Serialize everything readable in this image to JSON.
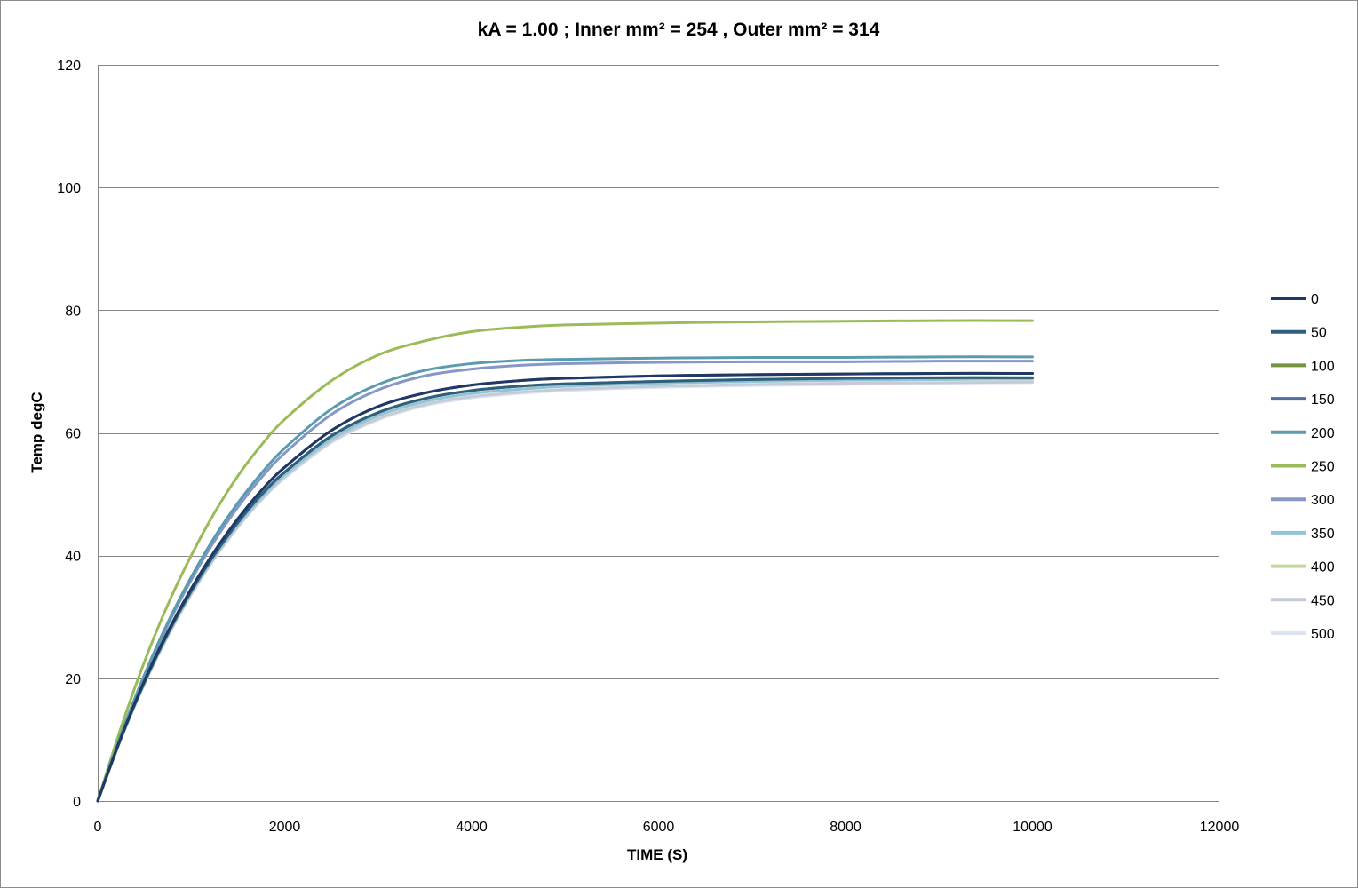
{
  "chart_data": {
    "type": "line",
    "title": "kA =  1.00 ; Inner  mm² =  254 , Outer  mm² = 314",
    "xlabel": "TIME (S)",
    "ylabel": "Temp degC",
    "xlim": [
      0,
      12000
    ],
    "ylim": [
      0,
      120
    ],
    "xticks": [
      0,
      2000,
      4000,
      6000,
      8000,
      10000,
      12000
    ],
    "yticks": [
      0,
      20,
      40,
      60,
      80,
      100,
      120
    ],
    "xtick_labels": [
      "0",
      "2000",
      "4000",
      "6000",
      "8000",
      "10000",
      "12000"
    ],
    "ytick_labels": [
      "0",
      "20",
      "40",
      "60",
      "80",
      "100",
      "120"
    ],
    "grid": "horizontal",
    "legend_position": "right",
    "x": [
      0,
      250,
      500,
      750,
      1000,
      1250,
      1500,
      1750,
      2000,
      2500,
      3000,
      3500,
      4000,
      4500,
      5000,
      6000,
      7000,
      8000,
      9000,
      10000
    ],
    "series": [
      {
        "name": "0",
        "color": "#1f3864",
        "values": [
          0,
          10.4,
          19.6,
          27.6,
          34.6,
          40.7,
          46.0,
          50.6,
          54.4,
          60.4,
          64.3,
          66.5,
          67.8,
          68.5,
          68.9,
          69.3,
          69.5,
          69.6,
          69.7,
          69.7
        ]
      },
      {
        "name": "50",
        "color": "#2e5f80",
        "values": [
          0,
          10.3,
          19.4,
          27.3,
          34.2,
          40.2,
          45.4,
          49.9,
          53.6,
          59.5,
          63.3,
          65.6,
          66.9,
          67.6,
          68.0,
          68.4,
          68.7,
          68.9,
          69.0,
          69.0
        ]
      },
      {
        "name": "100",
        "color": "#76923c",
        "values": [
          0,
          10.3,
          19.4,
          27.3,
          34.2,
          40.2,
          45.4,
          49.9,
          53.6,
          59.5,
          63.3,
          65.6,
          66.9,
          67.6,
          68.0,
          68.4,
          68.7,
          68.9,
          69.0,
          69.0
        ]
      },
      {
        "name": "150",
        "color": "#4f6fa3",
        "values": [
          0,
          10.4,
          19.6,
          27.6,
          34.6,
          40.7,
          46.0,
          50.6,
          54.4,
          60.4,
          64.3,
          66.5,
          67.8,
          68.5,
          68.9,
          69.3,
          69.5,
          69.6,
          69.7,
          69.7
        ]
      },
      {
        "name": "200",
        "color": "#5a9bb0",
        "values": [
          0,
          10.9,
          20.6,
          29.1,
          36.5,
          43.0,
          48.6,
          53.4,
          57.5,
          63.9,
          67.9,
          70.2,
          71.3,
          71.8,
          72.0,
          72.2,
          72.3,
          72.3,
          72.4,
          72.4
        ]
      },
      {
        "name": "250",
        "color": "#9bbb59",
        "values": [
          0,
          12.0,
          22.7,
          32.0,
          40.0,
          47.0,
          53.0,
          58.0,
          62.2,
          68.5,
          72.7,
          75.0,
          76.5,
          77.2,
          77.6,
          77.9,
          78.1,
          78.2,
          78.3,
          78.3
        ]
      },
      {
        "name": "300",
        "color": "#8497c6",
        "values": [
          0,
          10.8,
          20.3,
          28.7,
          36.0,
          42.4,
          47.9,
          52.7,
          56.7,
          63.0,
          67.0,
          69.3,
          70.4,
          71.0,
          71.3,
          71.5,
          71.6,
          71.6,
          71.7,
          71.7
        ]
      },
      {
        "name": "350",
        "color": "#92c3d6",
        "values": [
          0,
          10.2,
          19.2,
          27.1,
          34.0,
          39.9,
          45.1,
          49.5,
          53.2,
          59.0,
          62.8,
          65.1,
          66.4,
          67.1,
          67.6,
          68.1,
          68.4,
          68.6,
          68.7,
          68.8
        ]
      },
      {
        "name": "400",
        "color": "#c4d79b",
        "values": [
          0,
          10.2,
          19.2,
          27.1,
          34.0,
          39.9,
          45.1,
          49.5,
          53.2,
          59.0,
          62.8,
          65.1,
          66.4,
          67.1,
          67.6,
          68.1,
          68.4,
          68.6,
          68.7,
          68.8
        ]
      },
      {
        "name": "450",
        "color": "#c5cbd6",
        "values": [
          0,
          10.1,
          19.1,
          26.9,
          33.7,
          39.6,
          44.7,
          49.1,
          52.8,
          58.6,
          62.3,
          64.6,
          65.9,
          66.6,
          67.1,
          67.6,
          67.9,
          68.1,
          68.2,
          68.3
        ]
      },
      {
        "name": "500",
        "color": "#dbe5f1",
        "values": [
          0,
          10.1,
          19.0,
          26.8,
          33.6,
          39.5,
          44.6,
          49.0,
          52.6,
          58.4,
          62.1,
          64.4,
          65.7,
          66.4,
          66.9,
          67.4,
          67.7,
          67.9,
          68.1,
          68.2
        ]
      }
    ]
  }
}
